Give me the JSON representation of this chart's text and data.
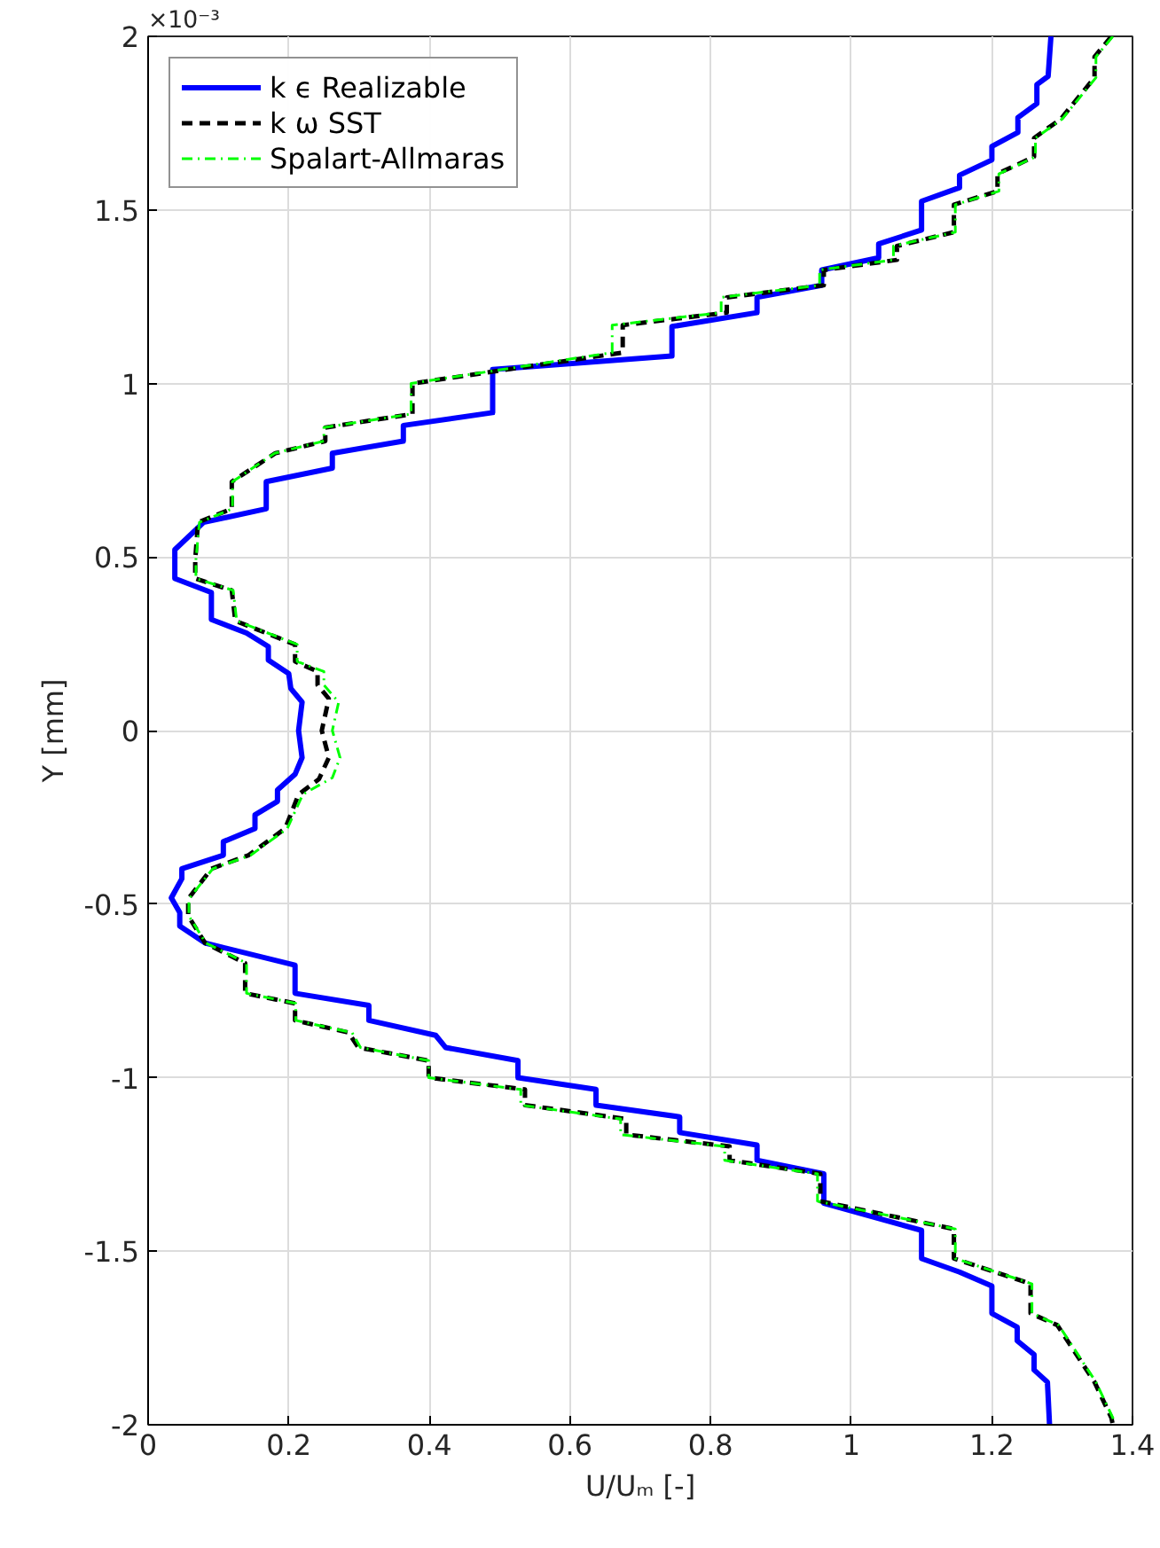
{
  "chart_data": {
    "type": "line",
    "xlabel": "U/Uₘ [-]",
    "ylabel": "Y [mm]",
    "annotations": [
      "×10⁻³"
    ],
    "xlim": [
      0,
      1.4
    ],
    "xticks": [
      0,
      0.2,
      0.4,
      0.6,
      0.8,
      1,
      1.2,
      1.4
    ],
    "ylim": [
      -2,
      2
    ],
    "yticks": [
      -2,
      -1.5,
      -1,
      -0.5,
      0,
      0.5,
      1,
      1.5,
      2
    ],
    "grid": true,
    "legend": "top left",
    "marker": "none",
    "series": [
      {
        "name": "k ϵ Realizable",
        "color": "#0000ff",
        "line_style": "solid",
        "x": [
          1.284,
          1.28,
          1.264,
          1.264,
          1.237,
          1.237,
          1.2,
          1.2,
          1.154,
          1.154,
          1.1,
          1.1,
          1.039,
          1.039,
          0.958,
          0.958,
          0.866,
          0.866,
          0.745,
          0.745,
          0.49,
          0.49,
          0.363,
          0.363,
          0.262,
          0.262,
          0.168,
          0.168,
          0.079,
          0.038,
          0.038,
          0.09,
          0.09,
          0.14,
          0.171,
          0.171,
          0.2,
          0.203,
          0.219,
          0.214,
          0.219,
          0.209,
          0.184,
          0.184,
          0.152,
          0.152,
          0.107,
          0.107,
          0.048,
          0.048,
          0.033,
          0.045,
          0.045,
          0.081,
          0.209,
          0.209,
          0.314,
          0.314,
          0.409,
          0.423,
          0.526,
          0.526,
          0.637,
          0.637,
          0.756,
          0.756,
          0.866,
          0.866,
          0.961,
          0.961,
          1.1,
          1.1,
          1.154,
          1.2,
          1.2,
          1.236,
          1.236,
          1.26,
          1.26,
          1.279,
          1.282
        ],
        "values": [
          2,
          1.885,
          1.861,
          1.806,
          1.766,
          1.723,
          1.683,
          1.644,
          1.6,
          1.564,
          1.525,
          1.442,
          1.402,
          1.362,
          1.327,
          1.283,
          1.248,
          1.204,
          1.164,
          1.079,
          1.04,
          0.916,
          0.879,
          0.834,
          0.799,
          0.756,
          0.717,
          0.639,
          0.6,
          0.521,
          0.438,
          0.398,
          0.32,
          0.281,
          0.242,
          0.203,
          0.164,
          0.121,
          0.082,
          0,
          -0.078,
          -0.126,
          -0.171,
          -0.204,
          -0.243,
          -0.282,
          -0.32,
          -0.359,
          -0.398,
          -0.427,
          -0.482,
          -0.524,
          -0.563,
          -0.612,
          -0.676,
          -0.757,
          -0.792,
          -0.835,
          -0.878,
          -0.913,
          -0.951,
          -1.0,
          -1.034,
          -1.079,
          -1.113,
          -1.158,
          -1.194,
          -1.238,
          -1.277,
          -1.362,
          -1.44,
          -1.521,
          -1.56,
          -1.6,
          -1.679,
          -1.719,
          -1.758,
          -1.798,
          -1.842,
          -1.877,
          -2
        ]
      },
      {
        "name": "k ω SST",
        "color": "#000000",
        "line_style": "dashed",
        "x": [
          1.37,
          1.346,
          1.346,
          1.298,
          1.26,
          1.26,
          1.208,
          1.208,
          1.146,
          1.146,
          1.065,
          1.065,
          0.961,
          0.961,
          0.823,
          0.823,
          0.675,
          0.675,
          0.376,
          0.376,
          0.252,
          0.252,
          0.181,
          0.119,
          0.119,
          0.071,
          0.067,
          0.067,
          0.119,
          0.124,
          0.209,
          0.209,
          0.241,
          0.241,
          0.257,
          0.247,
          0.257,
          0.243,
          0.214,
          0.195,
          0.143,
          0.09,
          0.057,
          0.057,
          0.081,
          0.138,
          0.138,
          0.209,
          0.209,
          0.285,
          0.299,
          0.399,
          0.399,
          0.536,
          0.536,
          0.68,
          0.68,
          0.827,
          0.827,
          0.956,
          0.956,
          1.146,
          1.146,
          1.255,
          1.255,
          1.293,
          1.346,
          1.37,
          1.372
        ],
        "values": [
          2,
          1.941,
          1.881,
          1.762,
          1.707,
          1.653,
          1.604,
          1.554,
          1.515,
          1.436,
          1.396,
          1.356,
          1.327,
          1.283,
          1.248,
          1.204,
          1.168,
          1.089,
          1.0,
          0.912,
          0.873,
          0.834,
          0.799,
          0.717,
          0.639,
          0.6,
          0.492,
          0.438,
          0.404,
          0.316,
          0.248,
          0.199,
          0.17,
          0.131,
          0.092,
          0,
          -0.078,
          -0.14,
          -0.184,
          -0.282,
          -0.359,
          -0.398,
          -0.485,
          -0.534,
          -0.612,
          -0.67,
          -0.757,
          -0.786,
          -0.835,
          -0.87,
          -0.913,
          -0.951,
          -1.0,
          -1.034,
          -1.079,
          -1.119,
          -1.164,
          -1.198,
          -1.238,
          -1.277,
          -1.356,
          -1.436,
          -1.521,
          -1.594,
          -1.679,
          -1.713,
          -1.877,
          -1.98,
          -2
        ]
      },
      {
        "name": "Spalart-Allmaras",
        "color": "#00ff00",
        "line_style": "dashdot",
        "x": [
          1.372,
          1.348,
          1.348,
          1.3,
          1.262,
          1.262,
          1.21,
          1.21,
          1.148,
          1.148,
          1.06,
          1.06,
          0.955,
          0.955,
          0.815,
          0.815,
          0.66,
          0.66,
          0.374,
          0.374,
          0.25,
          0.25,
          0.18,
          0.12,
          0.12,
          0.073,
          0.068,
          0.068,
          0.121,
          0.126,
          0.212,
          0.212,
          0.25,
          0.25,
          0.271,
          0.262,
          0.273,
          0.262,
          0.22,
          0.198,
          0.146,
          0.092,
          0.058,
          0.058,
          0.082,
          0.14,
          0.14,
          0.21,
          0.21,
          0.29,
          0.302,
          0.399,
          0.399,
          0.53,
          0.53,
          0.672,
          0.672,
          0.82,
          0.82,
          0.952,
          0.952,
          1.148,
          1.148,
          1.257,
          1.257,
          1.295,
          1.348,
          1.372,
          1.374
        ],
        "values": [
          2,
          1.941,
          1.881,
          1.762,
          1.707,
          1.653,
          1.604,
          1.554,
          1.515,
          1.436,
          1.396,
          1.356,
          1.327,
          1.283,
          1.248,
          1.204,
          1.168,
          1.089,
          1.0,
          0.912,
          0.873,
          0.834,
          0.799,
          0.717,
          0.639,
          0.6,
          0.492,
          0.438,
          0.404,
          0.316,
          0.248,
          0.199,
          0.17,
          0.131,
          0.082,
          0,
          -0.078,
          -0.136,
          -0.184,
          -0.282,
          -0.359,
          -0.398,
          -0.485,
          -0.534,
          -0.612,
          -0.67,
          -0.757,
          -0.786,
          -0.835,
          -0.87,
          -0.913,
          -0.951,
          -1.0,
          -1.034,
          -1.079,
          -1.119,
          -1.164,
          -1.198,
          -1.238,
          -1.277,
          -1.356,
          -1.436,
          -1.521,
          -1.594,
          -1.679,
          -1.713,
          -1.877,
          -1.98,
          -2
        ]
      }
    ]
  }
}
